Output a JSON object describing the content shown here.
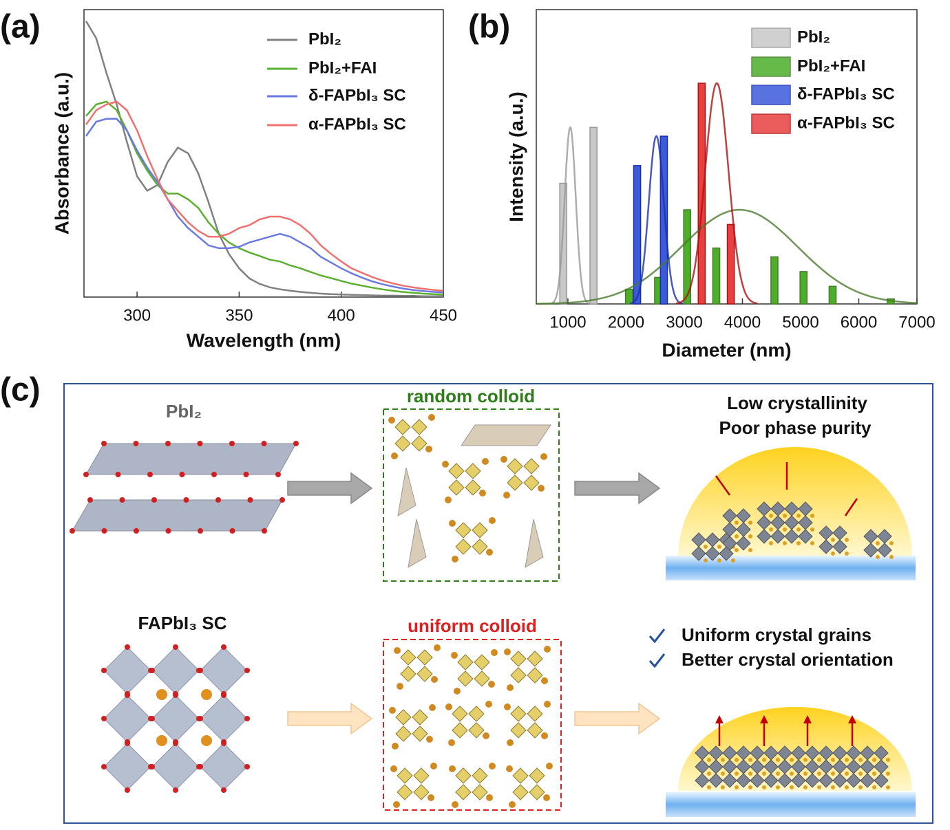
{
  "panels": {
    "a": "(a)",
    "b": "(b)",
    "c": "(c)"
  },
  "chart_data": [
    {
      "type": "line",
      "xlabel": "Wavelength (nm)",
      "ylabel": "Absorbance (a.u.)",
      "xlim": [
        274,
        450
      ],
      "ylim": [
        0,
        1
      ],
      "xticks": [
        300,
        350,
        400,
        450
      ],
      "x": [
        275,
        280,
        285,
        290,
        295,
        300,
        305,
        310,
        315,
        320,
        325,
        330,
        335,
        340,
        345,
        350,
        355,
        360,
        365,
        370,
        375,
        380,
        385,
        390,
        395,
        400,
        405,
        410,
        415,
        420,
        425,
        430,
        435,
        440,
        445,
        450
      ],
      "series": [
        {
          "name": "PbI₂",
          "color": "#808080",
          "values": [
            0.96,
            0.9,
            0.78,
            0.67,
            0.54,
            0.42,
            0.37,
            0.39,
            0.47,
            0.52,
            0.5,
            0.43,
            0.33,
            0.22,
            0.15,
            0.1,
            0.065,
            0.046,
            0.034,
            0.027,
            0.022,
            0.018,
            0.015,
            0.012,
            0.01,
            0.009,
            0.008,
            0.007,
            0.006,
            0.005,
            0.005,
            0.004,
            0.004,
            0.003,
            0.003,
            0.003
          ]
        },
        {
          "name": "PbI₂+FAI",
          "color": "#5cb030",
          "values": [
            0.63,
            0.67,
            0.68,
            0.65,
            0.58,
            0.5,
            0.44,
            0.39,
            0.36,
            0.36,
            0.34,
            0.31,
            0.26,
            0.22,
            0.19,
            0.17,
            0.155,
            0.143,
            0.13,
            0.124,
            0.11,
            0.1,
            0.087,
            0.075,
            0.066,
            0.056,
            0.047,
            0.04,
            0.033,
            0.027,
            0.022,
            0.018,
            0.015,
            0.012,
            0.01,
            0.009
          ]
        },
        {
          "name": "δ-FAPbI₃ SC",
          "color": "#6a7ae0",
          "values": [
            0.56,
            0.61,
            0.62,
            0.62,
            0.58,
            0.51,
            0.45,
            0.4,
            0.34,
            0.28,
            0.24,
            0.21,
            0.18,
            0.17,
            0.17,
            0.175,
            0.19,
            0.2,
            0.21,
            0.22,
            0.21,
            0.19,
            0.17,
            0.14,
            0.12,
            0.1,
            0.083,
            0.068,
            0.055,
            0.045,
            0.037,
            0.03,
            0.025,
            0.021,
            0.018,
            0.016
          ]
        },
        {
          "name": "α-FAPbI₃ SC",
          "color": "#f07070",
          "values": [
            0.6,
            0.65,
            0.67,
            0.68,
            0.65,
            0.58,
            0.49,
            0.41,
            0.34,
            0.3,
            0.26,
            0.23,
            0.21,
            0.21,
            0.22,
            0.24,
            0.25,
            0.27,
            0.28,
            0.28,
            0.27,
            0.25,
            0.22,
            0.18,
            0.15,
            0.124,
            0.1,
            0.085,
            0.07,
            0.058,
            0.048,
            0.04,
            0.034,
            0.029,
            0.025,
            0.022
          ]
        }
      ]
    },
    {
      "type": "bar",
      "xlabel": "Diameter (nm)",
      "ylabel": "Intensity (a.u.)",
      "xlim": [
        456,
        7000
      ],
      "ylim": [
        0,
        1
      ],
      "xticks": [
        1000,
        2000,
        3000,
        4000,
        5000,
        6000,
        7000
      ],
      "series": [
        {
          "name": "PbI₂",
          "color": "#c8c8c8",
          "edge": "#999999",
          "x": [
            920,
            1440
          ],
          "values": [
            0.41,
            0.6
          ],
          "fit": {
            "center": 1040,
            "peak": 0.6,
            "sigma": 95
          }
        },
        {
          "name": "PbI₂+FAI",
          "color": "#4caf2a",
          "edge": "#4a7a2a",
          "x": [
            2050,
            2550,
            3050,
            3550,
            4550,
            5050,
            5550,
            6550
          ],
          "values": [
            0.05,
            0.09,
            0.32,
            0.19,
            0.16,
            0.11,
            0.06,
            0.017
          ],
          "fit": {
            "center": 3950,
            "peak": 0.32,
            "sigma": 1000
          }
        },
        {
          "name": "δ-FAPbI₃ SC",
          "color": "#3b5bdb",
          "edge": "#1a2fb0",
          "x": [
            2190,
            2650
          ],
          "values": [
            0.47,
            0.57
          ],
          "fit": {
            "center": 2520,
            "peak": 0.57,
            "sigma": 130
          }
        },
        {
          "name": "α-FAPbI₃ SC",
          "color": "#e84040",
          "edge": "#b01010",
          "x": [
            3300,
            3800
          ],
          "values": [
            0.75,
            0.27
          ],
          "fit": {
            "center": 3560,
            "peak": 0.75,
            "sigma": 200
          }
        }
      ]
    }
  ],
  "diagram": {
    "top_left": "PbI₂",
    "top_middle": "random colloid",
    "top_right": [
      "Low crystallinity",
      "Poor phase purity"
    ],
    "bottom_left": "FAPbI₃ SC",
    "bottom_middle": "uniform colloid",
    "bottom_right": [
      "Uniform crystal grains",
      "Better crystal orientation"
    ]
  }
}
